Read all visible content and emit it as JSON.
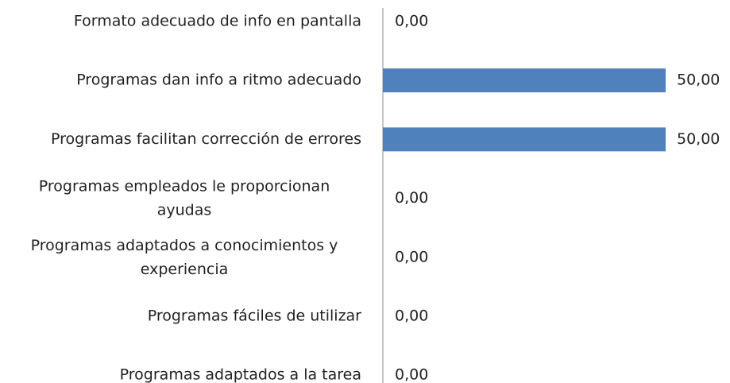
{
  "chart_data": {
    "type": "barh",
    "categories": [
      "Formato adecuado de info en pantalla",
      "Programas dan info a ritmo adecuado",
      "Programas facilitan corrección de errores",
      "Programas empleados le proporcionan\nayudas",
      "Programas adaptados a conocimientos y\nexperiencia",
      "Programas fáciles de utilizar",
      "Programas adaptados a la tarea"
    ],
    "values": [
      0,
      50,
      50,
      0,
      0,
      0,
      0
    ],
    "value_labels": [
      "0,00",
      "50,00",
      "50,00",
      "0,00",
      "0,00",
      "0,00",
      "0,00"
    ],
    "color": "#4f81bd"
  }
}
